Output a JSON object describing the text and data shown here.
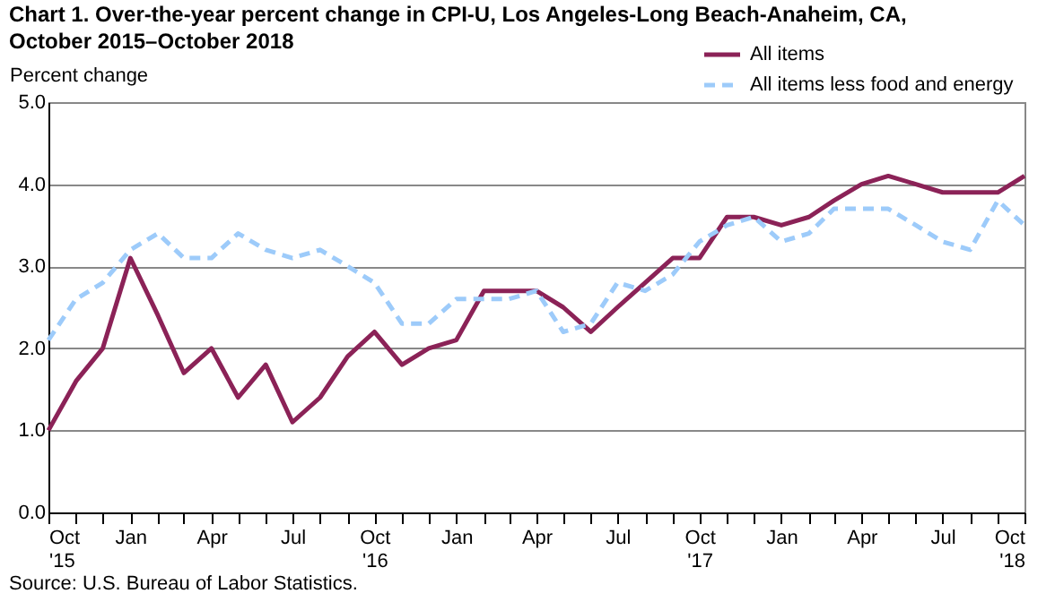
{
  "chart_data": {
    "type": "line",
    "title": "Chart 1. Over-the-year percent change in CPI-U, Los Angeles-Long Beach-Anaheim, CA,\nOctober 2015–October 2018",
    "ylabel": "Percent change",
    "x": [
      "2015-10",
      "2015-11",
      "2015-12",
      "2016-01",
      "2016-02",
      "2016-03",
      "2016-04",
      "2016-05",
      "2016-06",
      "2016-07",
      "2016-08",
      "2016-09",
      "2016-10",
      "2016-11",
      "2016-12",
      "2017-01",
      "2017-02",
      "2017-03",
      "2017-04",
      "2017-05",
      "2017-06",
      "2017-07",
      "2017-08",
      "2017-09",
      "2017-10",
      "2017-11",
      "2017-12",
      "2018-01",
      "2018-02",
      "2018-03",
      "2018-04",
      "2018-05",
      "2018-06",
      "2018-07",
      "2018-08",
      "2018-09",
      "2018-10"
    ],
    "xlim": [
      "2015-10",
      "2018-10"
    ],
    "xticks": [
      {
        "value": "2015-10",
        "label": "Oct '15"
      },
      {
        "value": "2015-11",
        "label": null
      },
      {
        "value": "2015-12",
        "label": null
      },
      {
        "value": "2016-01",
        "label": "Jan"
      },
      {
        "value": "2016-02",
        "label": null
      },
      {
        "value": "2016-03",
        "label": null
      },
      {
        "value": "2016-04",
        "label": "Apr"
      },
      {
        "value": "2016-05",
        "label": null
      },
      {
        "value": "2016-06",
        "label": null
      },
      {
        "value": "2016-07",
        "label": "Jul"
      },
      {
        "value": "2016-08",
        "label": null
      },
      {
        "value": "2016-09",
        "label": null
      },
      {
        "value": "2016-10",
        "label": "Oct '16"
      },
      {
        "value": "2016-11",
        "label": null
      },
      {
        "value": "2016-12",
        "label": null
      },
      {
        "value": "2017-01",
        "label": "Jan"
      },
      {
        "value": "2017-02",
        "label": null
      },
      {
        "value": "2017-03",
        "label": null
      },
      {
        "value": "2017-04",
        "label": "Apr"
      },
      {
        "value": "2017-05",
        "label": null
      },
      {
        "value": "2017-06",
        "label": null
      },
      {
        "value": "2017-07",
        "label": "Jul"
      },
      {
        "value": "2017-08",
        "label": null
      },
      {
        "value": "2017-09",
        "label": null
      },
      {
        "value": "2017-10",
        "label": "Oct '17"
      },
      {
        "value": "2017-11",
        "label": null
      },
      {
        "value": "2017-12",
        "label": null
      },
      {
        "value": "2018-01",
        "label": "Jan"
      },
      {
        "value": "2018-02",
        "label": null
      },
      {
        "value": "2018-03",
        "label": null
      },
      {
        "value": "2018-04",
        "label": "Apr"
      },
      {
        "value": "2018-05",
        "label": null
      },
      {
        "value": "2018-06",
        "label": null
      },
      {
        "value": "2018-07",
        "label": "Jul"
      },
      {
        "value": "2018-08",
        "label": null
      },
      {
        "value": "2018-09",
        "label": null
      },
      {
        "value": "2018-10",
        "label": "Oct '18"
      }
    ],
    "series": [
      {
        "name": "All items",
        "color": "#8b2257",
        "line_style": "solid",
        "values": [
          1.0,
          1.6,
          2.0,
          3.1,
          2.4,
          1.7,
          2.0,
          1.4,
          1.8,
          1.1,
          1.4,
          1.9,
          2.2,
          1.8,
          2.0,
          2.1,
          2.7,
          2.7,
          2.7,
          2.5,
          2.2,
          2.5,
          2.8,
          3.1,
          3.1,
          3.6,
          3.6,
          3.5,
          3.6,
          3.8,
          4.0,
          4.1,
          4.0,
          3.9,
          3.9,
          3.9,
          4.1
        ]
      },
      {
        "name": "All items less food and energy",
        "color": "#9dcbfa",
        "line_style": "dashed",
        "values": [
          2.1,
          2.6,
          2.8,
          3.2,
          3.4,
          3.1,
          3.1,
          3.4,
          3.2,
          3.1,
          3.2,
          3.0,
          2.8,
          2.3,
          2.3,
          2.6,
          2.6,
          2.6,
          2.7,
          2.2,
          2.3,
          2.8,
          2.7,
          2.9,
          3.3,
          3.5,
          3.6,
          3.3,
          3.4,
          3.7,
          3.7,
          3.7,
          3.5,
          3.3,
          3.2,
          3.8,
          3.5
        ]
      }
    ],
    "ylim": [
      0,
      5
    ],
    "yticks": [
      {
        "value": 0,
        "label": "0.0"
      },
      {
        "value": 1,
        "label": "1.0"
      },
      {
        "value": 2,
        "label": "2.0"
      },
      {
        "value": 3,
        "label": "3.0"
      },
      {
        "value": 4,
        "label": "4.0"
      },
      {
        "value": 5,
        "label": "5.0"
      }
    ],
    "grid": "y",
    "legend": "top right",
    "annotations": [
      "Source: U.S. Bureau of Labor Statistics."
    ]
  }
}
